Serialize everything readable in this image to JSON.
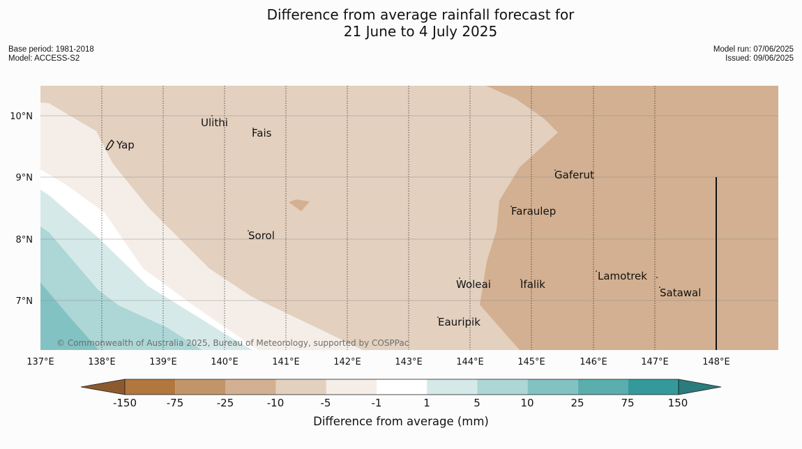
{
  "title": {
    "line1": "Difference from average rainfall forecast for",
    "line2": "21 June to 4 July 2025"
  },
  "meta_left": {
    "base_period": "Base period: 1981-2018",
    "model": "Model: ACCESS-S2"
  },
  "meta_right": {
    "model_run": "Model run: 07/06/2025",
    "issued": "Issued: 09/06/2025"
  },
  "map": {
    "copyright": "© Commonwealth of Australia 2025, Bureau of Meteorology, supported by COSPPac",
    "lon_ticks": [
      "137°E",
      "138°E",
      "139°E",
      "140°E",
      "141°E",
      "142°E",
      "143°E",
      "144°E",
      "145°E",
      "146°E",
      "147°E",
      "148°E"
    ],
    "lat_ticks": [
      "10°N",
      "9°N",
      "8°N",
      "7°N"
    ],
    "places": {
      "yap": "Yap",
      "ulithi": "Ulithi",
      "fais": "Fais",
      "sorol": "Sorol",
      "gaferut": "Gaferut",
      "faraulep": "Faraulep",
      "woleai": "Woleai",
      "ifalik": "Ifalik",
      "lamotrek": "Lamotrek",
      "satawal": "Satawal",
      "eauripik": "Eauripik"
    }
  },
  "colorbar": {
    "title": "Difference from average (mm)",
    "tick_labels": [
      "-150",
      "-75",
      "-25",
      "-10",
      "-5",
      "-1",
      "1",
      "5",
      "10",
      "25",
      "75",
      "150"
    ],
    "colors": {
      "below_150": "#8d5a2f",
      "n150_n75": "#b0773f",
      "n75_n25": "#c29568",
      "n25_n10": "#d3b091",
      "n10_n5": "#e3d0bf",
      "n5_n1": "#f5eee8",
      "n1_p1": "#ffffff",
      "p1_p5": "#d6e9e9",
      "p5_p10": "#add6d6",
      "p10_p25": "#83c2c2",
      "p25_p75": "#5aaeae",
      "p75_p150": "#34999a",
      "above_150": "#2b7c7c"
    }
  }
}
